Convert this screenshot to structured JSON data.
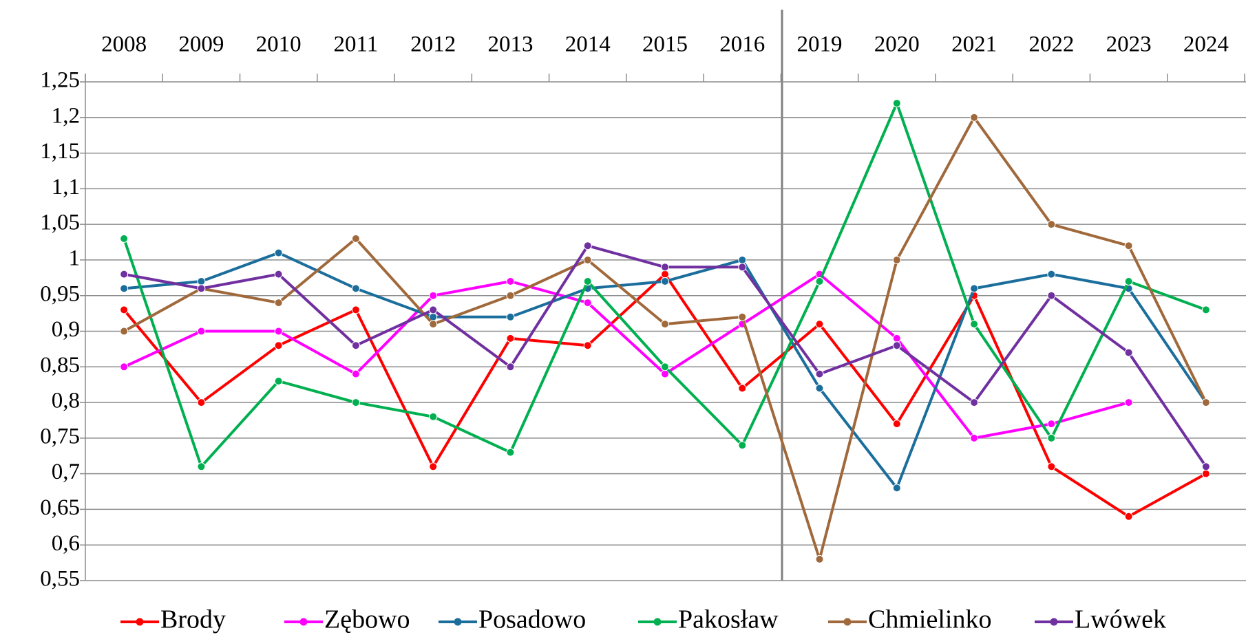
{
  "chart_data": {
    "type": "line",
    "categories": [
      "2008",
      "2009",
      "2010",
      "2011",
      "2012",
      "2013",
      "2014",
      "2015",
      "2016",
      "2019",
      "2020",
      "2021",
      "2022",
      "2023",
      "2024"
    ],
    "series": [
      {
        "name": "Brody",
        "color": "#ff0000",
        "values": [
          0.93,
          0.8,
          0.88,
          0.93,
          0.71,
          0.89,
          0.88,
          0.98,
          0.82,
          0.91,
          0.77,
          0.95,
          0.71,
          0.64,
          0.7
        ]
      },
      {
        "name": "Zębowo",
        "color": "#ff00ff",
        "values": [
          0.85,
          0.9,
          0.9,
          0.84,
          0.95,
          0.97,
          0.94,
          0.84,
          0.91,
          0.98,
          0.89,
          0.75,
          0.77,
          0.8,
          null
        ]
      },
      {
        "name": "Posadowo",
        "color": "#1b6e9c",
        "values": [
          0.96,
          0.97,
          1.01,
          0.96,
          0.92,
          0.92,
          0.96,
          0.97,
          1.0,
          0.82,
          0.68,
          0.96,
          0.98,
          0.96,
          0.8
        ]
      },
      {
        "name": "Pakosław",
        "color": "#00b050",
        "values": [
          1.03,
          0.71,
          0.83,
          0.8,
          0.78,
          0.73,
          0.97,
          0.85,
          0.74,
          0.97,
          1.22,
          0.91,
          0.75,
          0.97,
          0.93
        ]
      },
      {
        "name": "Chmielinko",
        "color": "#a0693c",
        "values": [
          0.9,
          0.96,
          0.94,
          1.03,
          0.91,
          0.95,
          1.0,
          0.91,
          0.92,
          0.58,
          1.0,
          1.2,
          1.05,
          1.02,
          0.8
        ]
      },
      {
        "name": "Lwówek",
        "color": "#7030a0",
        "values": [
          0.98,
          0.96,
          0.98,
          0.88,
          0.93,
          0.85,
          1.02,
          0.99,
          0.99,
          0.84,
          0.88,
          0.8,
          0.95,
          0.87,
          0.71
        ]
      }
    ],
    "ylim": [
      0.55,
      1.25
    ],
    "yticks": [
      {
        "value": 0.55,
        "label": "0,55"
      },
      {
        "value": 0.6,
        "label": "0,6"
      },
      {
        "value": 0.65,
        "label": "0,65"
      },
      {
        "value": 0.7,
        "label": "0,7"
      },
      {
        "value": 0.75,
        "label": "0,75"
      },
      {
        "value": 0.8,
        "label": "0,8"
      },
      {
        "value": 0.85,
        "label": "0,85"
      },
      {
        "value": 0.9,
        "label": "0,9"
      },
      {
        "value": 0.95,
        "label": "0,95"
      },
      1,
      {
        "value": 1.05,
        "label": "1,05"
      },
      {
        "value": 1.1,
        "label": "1,1"
      },
      {
        "value": 1.15,
        "label": "1,15"
      },
      {
        "value": 1.2,
        "label": "1,2"
      },
      {
        "value": 1.25,
        "label": "1,25"
      }
    ],
    "grid": true,
    "legend": "bottom"
  }
}
